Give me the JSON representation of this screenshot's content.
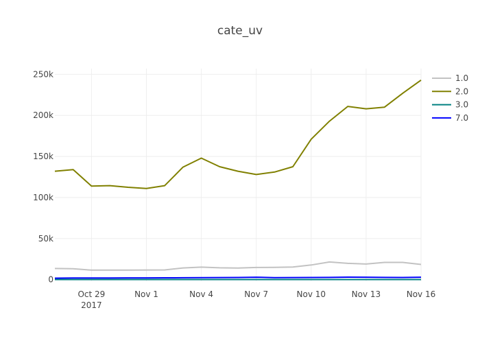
{
  "chart_data": {
    "type": "line",
    "title": "cate_uv",
    "x": [
      "2017-10-27",
      "2017-10-28",
      "2017-10-29",
      "2017-10-30",
      "2017-10-31",
      "2017-11-01",
      "2017-11-02",
      "2017-11-03",
      "2017-11-04",
      "2017-11-05",
      "2017-11-06",
      "2017-11-07",
      "2017-11-08",
      "2017-11-09",
      "2017-11-10",
      "2017-11-11",
      "2017-11-12",
      "2017-11-13",
      "2017-11-14",
      "2017-11-15",
      "2017-11-16"
    ],
    "xticks": [
      {
        "date": "2017-10-29",
        "label": "Oct 29",
        "sublabel": "2017"
      },
      {
        "date": "2017-11-01",
        "label": "Nov 1",
        "sublabel": ""
      },
      {
        "date": "2017-11-04",
        "label": "Nov 4",
        "sublabel": ""
      },
      {
        "date": "2017-11-07",
        "label": "Nov 7",
        "sublabel": ""
      },
      {
        "date": "2017-11-10",
        "label": "Nov 10",
        "sublabel": ""
      },
      {
        "date": "2017-11-13",
        "label": "Nov 13",
        "sublabel": ""
      },
      {
        "date": "2017-11-16",
        "label": "Nov 16",
        "sublabel": ""
      }
    ],
    "yticks": [
      {
        "value": 0,
        "label": "0"
      },
      {
        "value": 50000,
        "label": "50k"
      },
      {
        "value": 100000,
        "label": "100k"
      },
      {
        "value": 150000,
        "label": "150k"
      },
      {
        "value": 200000,
        "label": "200k"
      },
      {
        "value": 250000,
        "label": "250k"
      }
    ],
    "ylim": [
      -2000,
      257000
    ],
    "grid": true,
    "legend_position": "top-right",
    "series": [
      {
        "name": "1.0",
        "color": "#c2c2c2",
        "values": [
          13500,
          13200,
          11500,
          11600,
          11600,
          11700,
          11800,
          14200,
          15200,
          14400,
          14100,
          14800,
          15000,
          15300,
          17800,
          21500,
          19800,
          19000,
          21000,
          21000,
          18500
        ]
      },
      {
        "name": "2.0",
        "color": "#808000",
        "values": [
          132000,
          134000,
          114000,
          114500,
          112500,
          111000,
          114500,
          137000,
          148000,
          137500,
          132000,
          128000,
          131000,
          137500,
          171000,
          193000,
          211000,
          208000,
          210000,
          227000,
          243000
        ]
      },
      {
        "name": "3.0",
        "color": "#008080",
        "values": [
          100,
          100,
          100,
          100,
          100,
          100,
          100,
          100,
          100,
          100,
          100,
          100,
          100,
          100,
          100,
          100,
          100,
          100,
          100,
          100,
          100
        ]
      },
      {
        "name": "7.0",
        "color": "#0000ff",
        "values": [
          1800,
          1900,
          2000,
          2000,
          2100,
          2100,
          2200,
          2300,
          2400,
          2500,
          2600,
          2900,
          2400,
          2500,
          2600,
          2700,
          3000,
          2900,
          2700,
          2600,
          2900
        ]
      }
    ]
  }
}
